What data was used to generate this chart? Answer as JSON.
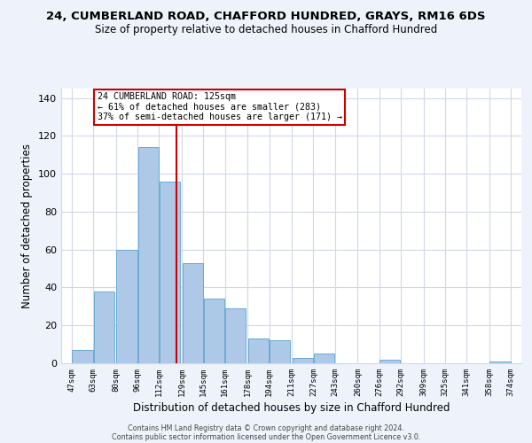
{
  "title1": "24, CUMBERLAND ROAD, CHAFFORD HUNDRED, GRAYS, RM16 6DS",
  "title2": "Size of property relative to detached houses in Chafford Hundred",
  "xlabel": "Distribution of detached houses by size in Chafford Hundred",
  "ylabel": "Number of detached properties",
  "bar_left_edges": [
    47,
    63,
    80,
    96,
    112,
    129,
    145,
    161,
    178,
    194,
    211,
    227,
    243,
    260,
    276,
    292,
    309,
    325,
    341,
    358
  ],
  "bar_heights": [
    7,
    38,
    60,
    114,
    96,
    53,
    34,
    29,
    13,
    12,
    3,
    5,
    0,
    0,
    2,
    0,
    0,
    0,
    0,
    1
  ],
  "bin_width": 16,
  "bar_color": "#aec9e8",
  "bar_edge_color": "#6aaad4",
  "vline_x": 125,
  "vline_color": "#cc0000",
  "annotation_text_line1": "24 CUMBERLAND ROAD: 125sqm",
  "annotation_text_line2": "← 61% of detached houses are smaller (283)",
  "annotation_text_line3": "37% of semi-detached houses are larger (171) →",
  "tick_labels": [
    "47sqm",
    "63sqm",
    "80sqm",
    "96sqm",
    "112sqm",
    "129sqm",
    "145sqm",
    "161sqm",
    "178sqm",
    "194sqm",
    "211sqm",
    "227sqm",
    "243sqm",
    "260sqm",
    "276sqm",
    "292sqm",
    "309sqm",
    "325sqm",
    "341sqm",
    "358sqm",
    "374sqm"
  ],
  "tick_positions": [
    47,
    63,
    80,
    96,
    112,
    129,
    145,
    161,
    178,
    194,
    211,
    227,
    243,
    260,
    276,
    292,
    309,
    325,
    341,
    358,
    374
  ],
  "yticks": [
    0,
    20,
    40,
    60,
    80,
    100,
    120,
    140
  ],
  "ylim": [
    0,
    145
  ],
  "xlim": [
    39,
    382
  ],
  "footer1": "Contains HM Land Registry data © Crown copyright and database right 2024.",
  "footer2": "Contains public sector information licensed under the Open Government Licence v3.0.",
  "bg_color": "#eef3fb",
  "plot_bg_color": "#ffffff",
  "grid_color": "#d0d8e8"
}
